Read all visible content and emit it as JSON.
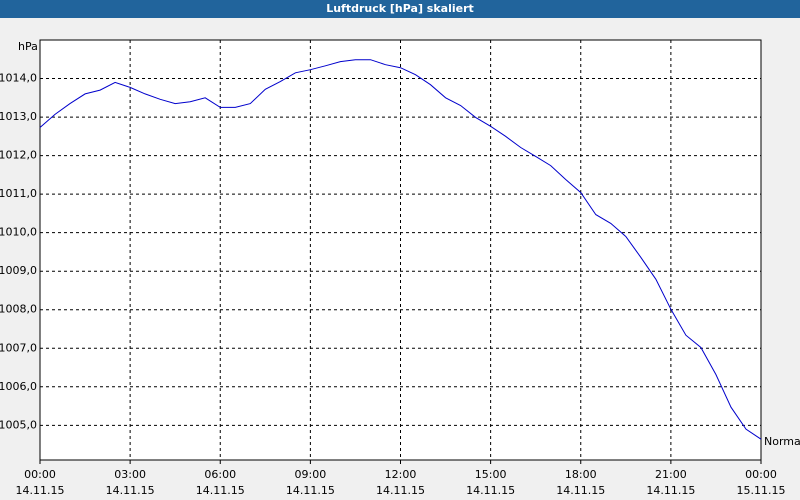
{
  "chart_data": {
    "type": "line",
    "title": "Luftdruck [hPa] skaliert",
    "y_label": "hPa",
    "x": [
      0,
      0.5,
      1,
      1.5,
      2,
      2.5,
      3,
      3.5,
      4,
      4.5,
      5,
      5.5,
      6,
      6.5,
      7,
      7.5,
      8,
      8.5,
      9,
      9.5,
      10,
      10.5,
      11,
      11.5,
      12,
      12.5,
      13,
      13.5,
      14,
      14.5,
      15,
      15.5,
      16,
      16.5,
      17,
      17.5,
      18,
      18.5,
      19,
      19.5,
      20,
      20.5,
      21,
      21.5,
      22,
      22.5,
      23,
      23.5,
      24
    ],
    "series": [
      {
        "name": "Normal",
        "color": "#0000cc",
        "values": [
          1012.73,
          1013.07,
          1013.35,
          1013.6,
          1013.7,
          1013.9,
          1013.77,
          1013.6,
          1013.46,
          1013.35,
          1013.4,
          1013.5,
          1013.25,
          1013.25,
          1013.35,
          1013.72,
          1013.92,
          1014.15,
          1014.23,
          1014.33,
          1014.44,
          1014.49,
          1014.49,
          1014.36,
          1014.28,
          1014.1,
          1013.84,
          1013.5,
          1013.3,
          1012.99,
          1012.76,
          1012.5,
          1012.21,
          1011.98,
          1011.74,
          1011.38,
          1011.04,
          1010.47,
          1010.24,
          1009.9,
          1009.36,
          1008.79,
          1008.01,
          1007.34,
          1007.02,
          1006.32,
          1005.47,
          1004.9,
          1004.64
        ]
      }
    ],
    "xlim": [
      0,
      24
    ],
    "xticks": [
      {
        "value": 0,
        "label": "00:00"
      },
      {
        "value": 3,
        "label": "03:00"
      },
      {
        "value": 6,
        "label": "06:00"
      },
      {
        "value": 9,
        "label": "09:00"
      },
      {
        "value": 12,
        "label": "12:00"
      },
      {
        "value": 15,
        "label": "15:00"
      },
      {
        "value": 18,
        "label": "18:00"
      },
      {
        "value": 21,
        "label": "21:00"
      },
      {
        "value": 24,
        "label": "00:00"
      }
    ],
    "xtick_dates": [
      "14.11.15",
      "14.11.15",
      "14.11.15",
      "14.11.15",
      "14.11.15",
      "14.11.15",
      "14.11.15",
      "14.11.15",
      "15.11.15"
    ],
    "ylim": [
      1004.1,
      1015.0
    ],
    "yticks": [
      {
        "value": 1005,
        "label": "1005,0"
      },
      {
        "value": 1006,
        "label": "1006,0"
      },
      {
        "value": 1007,
        "label": "1007,0"
      },
      {
        "value": 1008,
        "label": "1008,0"
      },
      {
        "value": 1009,
        "label": "1009,0"
      },
      {
        "value": 1010,
        "label": "1010,0"
      },
      {
        "value": 1011,
        "label": "1011,0"
      },
      {
        "value": 1012,
        "label": "1012,0"
      },
      {
        "value": 1013,
        "label": "1013,0"
      },
      {
        "value": 1014,
        "label": "1014,0"
      }
    ],
    "grid": true
  }
}
